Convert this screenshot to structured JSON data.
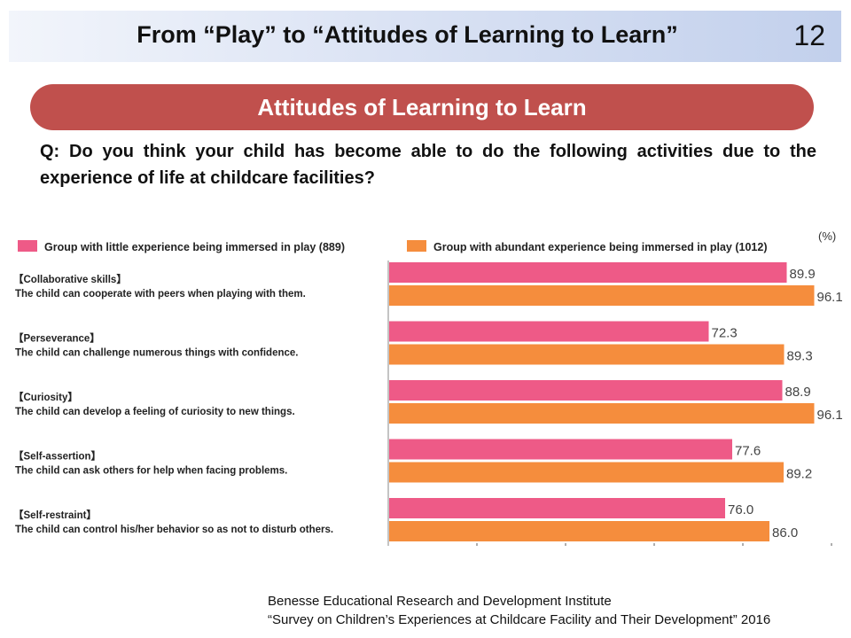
{
  "header": {
    "title": "From “Play” to “Attitudes of Learning to Learn”",
    "page_number": "12"
  },
  "section": {
    "title": "Attitudes of Learning to Learn"
  },
  "question": "Q: Do you think your child has become able to do the following activities due to the experience of life at childcare facilities?",
  "source": {
    "line1": "Benesse Educational Research and Development Institute",
    "line2": "“Survey on Children’s Experiences at Childcare Facility and Their Development” 2016"
  },
  "chart_data": {
    "type": "bar",
    "orientation": "horizontal",
    "unit": "(%)",
    "xlim": [
      0,
      100
    ],
    "grid": false,
    "legend_position": "top",
    "categories": [
      {
        "heading": "【Collaborative skills】",
        "text": "The child can cooperate with peers when playing with them."
      },
      {
        "heading": "【Perseverance】",
        "text": "The child can challenge numerous things with confidence."
      },
      {
        "heading": "【Curiosity】",
        "text": "The child can develop a feeling of curiosity to new things."
      },
      {
        "heading": "【Self-assertion】",
        "text": "The child can ask others for help when facing problems."
      },
      {
        "heading": "【Self-restraint】",
        "text": "The child can control his/her behavior so as not to disturb others."
      }
    ],
    "series": [
      {
        "name": "Group with little experience being immersed in play (889)",
        "color": "#ee5a87",
        "values": [
          89.9,
          72.3,
          88.9,
          77.6,
          76.0
        ]
      },
      {
        "name": "Group with abundant experience being immersed in play (1012)",
        "color": "#f58d3d",
        "values": [
          96.1,
          89.3,
          96.1,
          89.2,
          86.0
        ]
      }
    ]
  }
}
